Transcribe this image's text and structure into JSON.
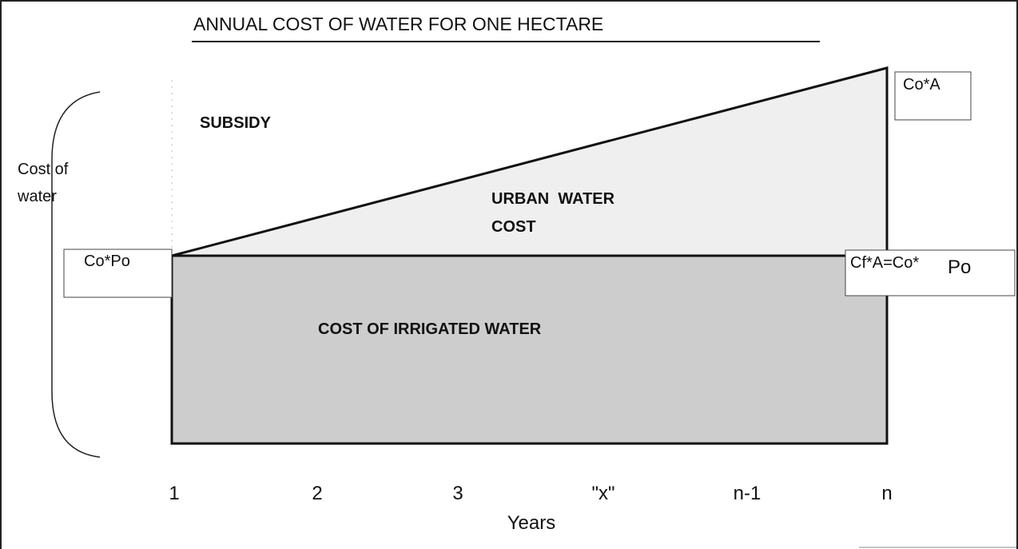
{
  "title": "ANNUAL COST OF WATER FOR ONE HECTARE",
  "regions": {
    "subsidy": "SUBSIDY",
    "urban": [
      "URBAN  WATER",
      "COST"
    ],
    "irrigated": "COST OF IRRIGATED WATER"
  },
  "y_label": [
    "Cost of",
    "water"
  ],
  "boxes": {
    "top_right": "Co*A",
    "left": "Co*Po",
    "right": [
      "Cf*A=Co*",
      "Po"
    ]
  },
  "x_axis": {
    "labels": [
      "1",
      "2",
      "3",
      "\"x\"",
      "n-1",
      "n"
    ],
    "title": "Years"
  }
}
